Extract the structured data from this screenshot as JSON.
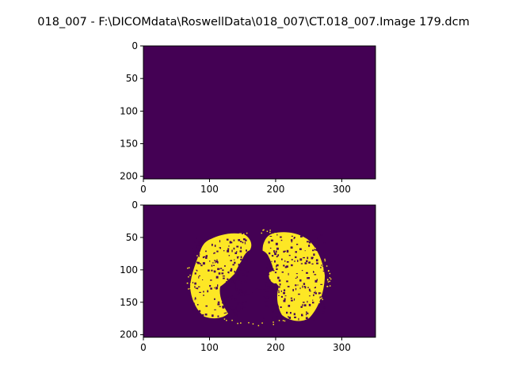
{
  "figure": {
    "title": "018_007 - F:\\DICOMdata\\RoswellData\\018_007\\CT.018_007.Image 179.dcm"
  },
  "colors": {
    "background": "#440154",
    "foreground": "#fde725",
    "axis": "#000000"
  },
  "chart_data": [
    {
      "type": "heatmap",
      "colormap": "viridis",
      "xlim": [
        0,
        351
      ],
      "ylim": [
        204,
        0
      ],
      "xticks": [
        0,
        100,
        200,
        300
      ],
      "yticks": [
        0,
        50,
        100,
        150,
        200
      ],
      "content": "uniform"
    },
    {
      "type": "heatmap",
      "colormap": "viridis",
      "xlim": [
        0,
        351
      ],
      "ylim": [
        204,
        0
      ],
      "xticks": [
        0,
        100,
        200,
        300
      ],
      "yticks": [
        0,
        50,
        100,
        150,
        200
      ],
      "content": "binary mask of lung region"
    }
  ]
}
